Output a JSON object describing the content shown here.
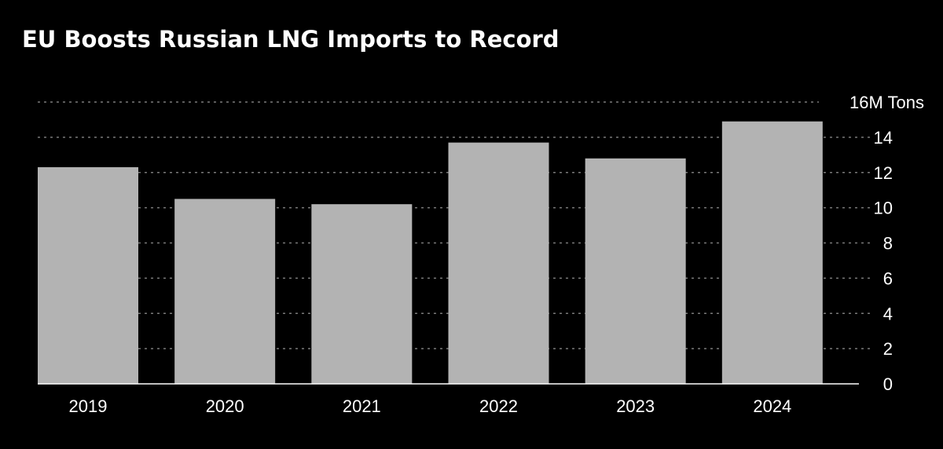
{
  "chart_data": {
    "type": "bar",
    "title": "EU Boosts Russian LNG Imports to Record",
    "unit_label": "16M Tons",
    "categories": [
      "2019",
      "2020",
      "2021",
      "2022",
      "2023",
      "2024"
    ],
    "values": [
      12.3,
      10.5,
      10.2,
      13.7,
      12.8,
      14.9
    ],
    "y_ticks": [
      0,
      2,
      4,
      6,
      8,
      10,
      12,
      14,
      16
    ],
    "ylim": [
      0,
      16
    ],
    "grid": true,
    "gridline_style": "dotted",
    "colors": {
      "background": "#000000",
      "bar": "#b3b3b3",
      "text": "#ffffff",
      "gridline": "#7a7a7a"
    }
  }
}
